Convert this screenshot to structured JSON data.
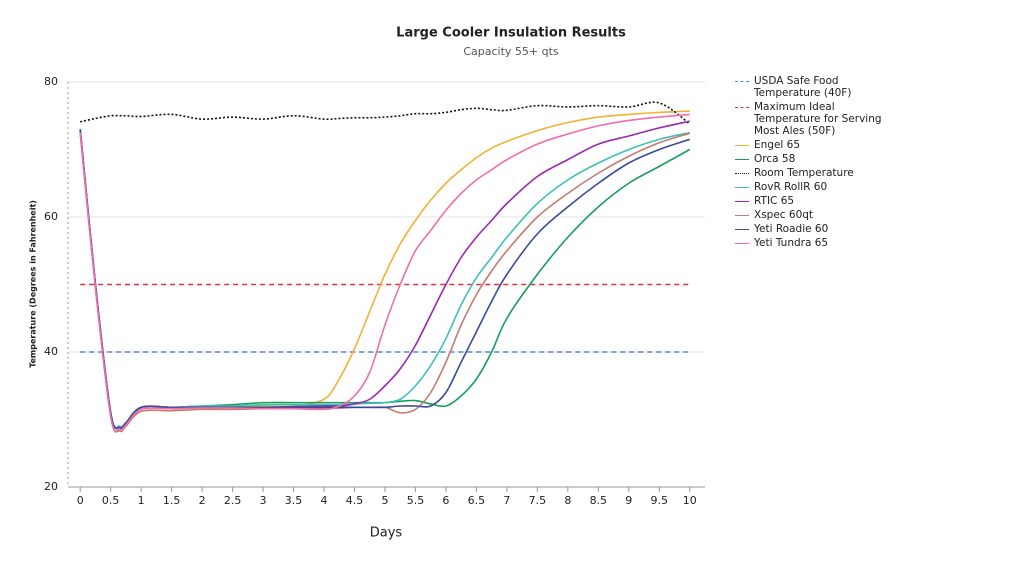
{
  "chart_data": {
    "type": "line",
    "title": "Large Cooler Insulation Results",
    "subtitle": "Capacity 55+ qts",
    "x_label": "Days",
    "y_label": "Temperature (Degrees in Fahrenheit)",
    "xlim": [
      -0.2,
      10.25
    ],
    "ylim": [
      20,
      80
    ],
    "xticks": [
      0,
      0.5,
      1,
      1.5,
      2,
      2.5,
      3,
      3.5,
      4,
      4.5,
      5,
      5.5,
      6,
      6.5,
      7,
      7.5,
      8,
      8.5,
      9,
      9.5,
      10
    ],
    "yticks": [
      20,
      40,
      60,
      80
    ],
    "grid": true,
    "legend": "right",
    "x": [
      0,
      0.25,
      0.5,
      0.65,
      0.75,
      1,
      1.5,
      2,
      2.5,
      3,
      3.5,
      4,
      4.25,
      4.5,
      4.75,
      5,
      5.25,
      5.5,
      5.75,
      6,
      6.25,
      6.5,
      6.75,
      7,
      7.5,
      8,
      8.5,
      9,
      9.5,
      10
    ],
    "series": [
      {
        "name": "USDA Safe Food Temperature (40F)",
        "color": "#4a86e8",
        "dash": "dashed",
        "x": [
          0,
          10
        ],
        "values": [
          40,
          40
        ]
      },
      {
        "name": "Maximum Ideal Temperature for Serving Most Ales (50F)",
        "color": "#d9363e",
        "dash": "dashed",
        "x": [
          0,
          10
        ],
        "values": [
          50,
          50
        ]
      },
      {
        "name": "Engel 65",
        "color": "#f2b134",
        "values": [
          73,
          50,
          31,
          28.8,
          29.5,
          31.8,
          31.8,
          32,
          32,
          32,
          32,
          33,
          36,
          40.5,
          46,
          51.5,
          56,
          59.5,
          62.5,
          65,
          67,
          68.8,
          70.2,
          71.2,
          72.8,
          74,
          74.8,
          75.2,
          75.5,
          75.7
        ]
      },
      {
        "name": "Orca 58",
        "color": "#159f5c",
        "values": [
          73,
          50,
          31,
          29,
          29.5,
          31.8,
          31.8,
          32,
          32.2,
          32.5,
          32.5,
          32.5,
          32.5,
          32.5,
          32.5,
          32.5,
          32.7,
          32.8,
          32.3,
          32,
          33.5,
          36,
          40,
          45,
          51.5,
          57,
          61.5,
          65,
          67.5,
          70
        ]
      },
      {
        "name": "Room Temperature",
        "color": "#111111",
        "dash": "dotted",
        "values": [
          74.1,
          74.6,
          75,
          75,
          75,
          74.9,
          75.2,
          74.5,
          74.8,
          74.5,
          75,
          74.5,
          74.6,
          74.7,
          74.7,
          74.8,
          75,
          75.3,
          75.3,
          75.5,
          75.9,
          76.1,
          75.9,
          75.8,
          76.5,
          76.3,
          76.5,
          76.3,
          76.9,
          73.8
        ]
      },
      {
        "name": "RovR RollR 60",
        "color": "#3fc1b4",
        "values": [
          72.8,
          50,
          31,
          29,
          29.5,
          31.8,
          31.8,
          32,
          32,
          32.2,
          32.2,
          32.2,
          32.2,
          32.3,
          32.4,
          32.5,
          33,
          35,
          38,
          42,
          47,
          51,
          54,
          57,
          62,
          65.5,
          68,
          70,
          71.5,
          72.5
        ]
      },
      {
        "name": "RTIC 65",
        "color": "#9b27b0",
        "values": [
          72.8,
          50,
          31,
          28.8,
          29.5,
          31.8,
          31.8,
          31.8,
          31.8,
          31.8,
          31.9,
          32,
          32,
          32.3,
          33,
          35,
          37.5,
          41,
          45.5,
          50,
          54,
          57,
          59.5,
          62,
          66,
          68.5,
          70.8,
          72,
          73.2,
          74.2
        ]
      },
      {
        "name": "Xspec 60qt",
        "color": "#c67a70",
        "values": [
          72.5,
          49.5,
          30.5,
          28.3,
          29,
          31.2,
          31.3,
          31.5,
          31.5,
          31.6,
          31.6,
          31.7,
          31.7,
          31.8,
          31.8,
          31.8,
          31,
          31.5,
          34,
          38.5,
          44,
          48.5,
          52,
          55,
          60,
          63.5,
          66.5,
          69,
          71,
          72.4
        ]
      },
      {
        "name": "Yeti Roadie 60",
        "color": "#3b4a9b",
        "values": [
          73,
          50,
          31,
          28.8,
          29.5,
          31.8,
          31.8,
          31.8,
          31.8,
          31.8,
          31.8,
          31.8,
          31.8,
          31.8,
          31.8,
          31.8,
          32,
          32,
          32,
          34,
          38.5,
          43,
          47.5,
          51.5,
          57.5,
          61.5,
          65,
          68,
          70,
          71.5
        ]
      },
      {
        "name": "Yeti Tundra 65",
        "color": "#f06ea9",
        "values": [
          72.5,
          49.5,
          30.5,
          28.5,
          29.2,
          31.5,
          31.6,
          31.7,
          31.7,
          31.6,
          31.6,
          31.5,
          32,
          33.5,
          37,
          44,
          50,
          55,
          58,
          61,
          63.5,
          65.5,
          67,
          68.5,
          70.8,
          72.3,
          73.5,
          74.3,
          74.8,
          75.2
        ]
      }
    ]
  }
}
